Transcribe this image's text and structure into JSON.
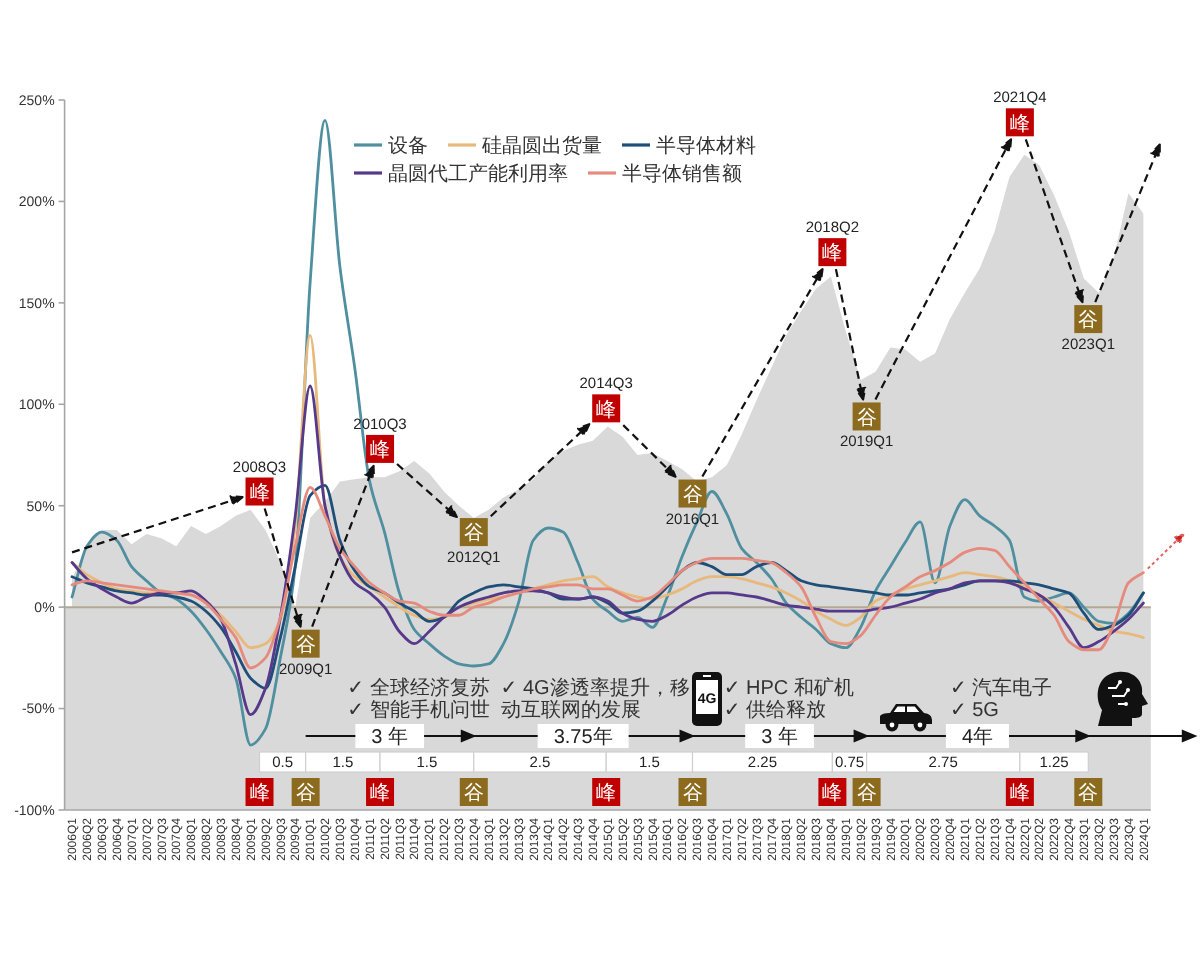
{
  "chart_data": {
    "type": "line",
    "categories": [
      "2006Q1",
      "2006Q2",
      "2006Q3",
      "2006Q4",
      "2007Q1",
      "2007Q2",
      "2007Q3",
      "2007Q4",
      "2008Q1",
      "2008Q2",
      "2008Q3",
      "2008Q4",
      "2009Q1",
      "2009Q2",
      "2009Q3",
      "2009Q4",
      "2010Q1",
      "2010Q2",
      "2010Q3",
      "2010Q4",
      "2011Q1",
      "2011Q2",
      "2011Q3",
      "2011Q4",
      "2012Q1",
      "2012Q2",
      "2012Q3",
      "2012Q4",
      "2013Q1",
      "2013Q2",
      "2013Q3",
      "2013Q4",
      "2014Q1",
      "2014Q2",
      "2014Q3",
      "2014Q4",
      "2015Q1",
      "2015Q2",
      "2015Q3",
      "2015Q4",
      "2016Q1",
      "2016Q2",
      "2016Q3",
      "2016Q4",
      "2017Q1",
      "2017Q2",
      "2017Q3",
      "2017Q4",
      "2018Q1",
      "2018Q2",
      "2018Q3",
      "2018Q4",
      "2019Q1",
      "2019Q2",
      "2019Q3",
      "2019Q4",
      "2020Q1",
      "2020Q2",
      "2020Q3",
      "2020Q4",
      "2021Q1",
      "2021Q2",
      "2021Q3",
      "2021Q4",
      "2022Q1",
      "2022Q2",
      "2022Q3",
      "2022Q4",
      "2023Q1",
      "2023Q2",
      "2023Q3",
      "2023Q4",
      "2024Q1"
    ],
    "ylim": [
      -100,
      250
    ],
    "yticks": [
      {
        "value": -100,
        "label": "-100%"
      },
      {
        "value": -50,
        "label": "-50%"
      },
      {
        "value": 0,
        "label": "0%"
      },
      {
        "value": 50,
        "label": "50%"
      },
      {
        "value": 100,
        "label": "100%"
      },
      {
        "value": 150,
        "label": "150%"
      },
      {
        "value": 200,
        "label": "200%"
      },
      {
        "value": 250,
        "label": "250%"
      }
    ],
    "series": [
      {
        "type": "area",
        "color": "#d9d9d9",
        "values": [
          14,
          30,
          38,
          38,
          31,
          36,
          34,
          30,
          40,
          36,
          40,
          45,
          48,
          38,
          22,
          0,
          44,
          52,
          62,
          63,
          64,
          64,
          67,
          72,
          66,
          57,
          50,
          44,
          48,
          54,
          58,
          63,
          72,
          77,
          80,
          82,
          89,
          84,
          75,
          76,
          72,
          68,
          62,
          64,
          70,
          85,
          102,
          118,
          134,
          146,
          157,
          163,
          136,
          112,
          116,
          128,
          127,
          121,
          125,
          142,
          155,
          167,
          185,
          212,
          223,
          218,
          203,
          185,
          162,
          155,
          172,
          204,
          194
        ]
      },
      {
        "name": "设备",
        "color": "#4f8fa0",
        "values": [
          5,
          30,
          37,
          33,
          20,
          13,
          7,
          4,
          -2,
          -11,
          -22,
          -35,
          -68,
          -60,
          -25,
          20,
          160,
          240,
          168,
          118,
          62,
          37,
          7,
          -11,
          -18,
          -24,
          -28,
          -29,
          -28,
          -18,
          2,
          33,
          39,
          37,
          22,
          4,
          -2,
          -7,
          -5,
          -10,
          5,
          25,
          42,
          57,
          46,
          29,
          22,
          14,
          2,
          -5,
          -11,
          -18,
          -20,
          -10,
          8,
          20,
          32,
          42,
          12,
          40,
          53,
          45,
          40,
          33,
          5,
          3,
          5,
          7,
          0,
          -7,
          -8,
          -3,
          7
        ]
      },
      {
        "name": "硅晶圆出货量",
        "color": "#e7b97d",
        "values": [
          22,
          16,
          12,
          9,
          8,
          7,
          7,
          7,
          6,
          2,
          -4,
          -12,
          -20,
          -18,
          -6,
          40,
          134,
          50,
          25,
          15,
          10,
          5,
          0,
          -4,
          -6,
          -5,
          0,
          2,
          4,
          5,
          7,
          9,
          11,
          13,
          14,
          15,
          10,
          7,
          5,
          4,
          6,
          9,
          13,
          15,
          15,
          14,
          12,
          10,
          7,
          3,
          -2,
          -6,
          -9,
          -5,
          3,
          6,
          9,
          11,
          13,
          15,
          17,
          16,
          15,
          13,
          10,
          6,
          2,
          -2,
          -6,
          -9,
          -12,
          -13,
          -15
        ]
      },
      {
        "name": "半导体材料",
        "color": "#1f4e79",
        "values": [
          15,
          12,
          10,
          8,
          7,
          6,
          6,
          5,
          3,
          -2,
          -10,
          -22,
          -35,
          -40,
          -15,
          20,
          55,
          60,
          33,
          18,
          10,
          7,
          2,
          -2,
          -7,
          -5,
          3,
          7,
          10,
          11,
          10,
          9,
          7,
          4,
          4,
          5,
          2,
          -3,
          -2,
          3,
          10,
          18,
          22,
          20,
          16,
          16,
          20,
          22,
          18,
          13,
          11,
          10,
          9,
          8,
          7,
          6,
          6,
          7,
          8,
          9,
          11,
          13,
          13,
          13,
          12,
          11,
          9,
          7,
          -3,
          -11,
          -9,
          -4,
          7
        ]
      },
      {
        "name": "晶圆代工产能利用率",
        "color": "#56398a",
        "values": [
          22,
          14,
          9,
          5,
          2,
          5,
          7,
          7,
          8,
          3,
          -6,
          -28,
          -53,
          -40,
          -5,
          45,
          109,
          50,
          25,
          12,
          7,
          0,
          -12,
          -18,
          -12,
          -5,
          0,
          3,
          5,
          7,
          8,
          8,
          7,
          5,
          4,
          5,
          3,
          -3,
          -6,
          -7,
          -4,
          1,
          5,
          7,
          7,
          6,
          5,
          3,
          1,
          0,
          -1,
          -2,
          -2,
          -2,
          -1,
          0,
          2,
          4,
          7,
          9,
          12,
          13,
          13,
          12,
          9,
          6,
          0,
          -10,
          -20,
          -17,
          -12,
          -6,
          2
        ]
      },
      {
        "name": "半导体销售额",
        "color": "#e68a7e",
        "values": [
          11,
          13,
          12,
          11,
          10,
          9,
          8,
          7,
          6,
          2,
          -6,
          -15,
          -30,
          -25,
          -5,
          30,
          59,
          45,
          29,
          20,
          12,
          7,
          3,
          2,
          -2,
          -4,
          -4,
          0,
          2,
          5,
          7,
          9,
          10,
          11,
          11,
          9,
          9,
          6,
          3,
          5,
          11,
          18,
          22,
          24,
          24,
          24,
          23,
          22,
          17,
          10,
          -5,
          -17,
          -18,
          -14,
          -4,
          5,
          10,
          15,
          18,
          22,
          27,
          29,
          28,
          20,
          12,
          4,
          -4,
          -17,
          -21,
          -21,
          -9,
          12,
          17
        ]
      }
    ],
    "legend": "top",
    "bands": [
      {
        "axis": "y",
        "from": -100,
        "to": 0,
        "color": "#d9d9d9"
      }
    ],
    "ref_lines": [
      {
        "axis": "y",
        "value": 0,
        "color": "#b3a894"
      }
    ],
    "annotations": [
      "2008Q3",
      "2009Q1",
      "2010Q3",
      "2012Q1",
      "2014Q3",
      "2016Q1",
      "2018Q2",
      "2019Q1",
      "2021Q4",
      "2023Q1",
      {
        "text": "峰",
        "y": 57
      },
      {
        "text": "谷",
        "y": -18
      },
      {
        "text": "峰",
        "y": 78
      },
      {
        "text": "谷",
        "y": 37
      },
      {
        "text": "峰",
        "y": 98
      },
      {
        "text": "谷",
        "y": 56
      },
      {
        "text": "峰",
        "y": 175
      },
      {
        "text": "谷",
        "y": 94
      },
      {
        "text": "峰",
        "y": 239
      },
      {
        "text": "谷",
        "y": 142
      },
      "峰",
      "谷",
      "峰",
      "谷",
      "峰",
      "谷",
      "峰",
      "谷",
      "峰",
      "谷",
      "0.5",
      "1.5",
      "1.5",
      "2.5",
      "1.5",
      "2.25",
      "0.75",
      "2.75",
      "1.25",
      "3 年",
      "3.75年",
      "3 年",
      "4年",
      "✓ 全球经济复苏",
      "✓ 智能手机问世",
      "✓ 4G渗透率提升，移动互联网的发展",
      "✓ HPC 和矿机",
      "✓ 供给释放",
      "✓ 汽车电子",
      "✓ 5G",
      "4G"
    ]
  }
}
